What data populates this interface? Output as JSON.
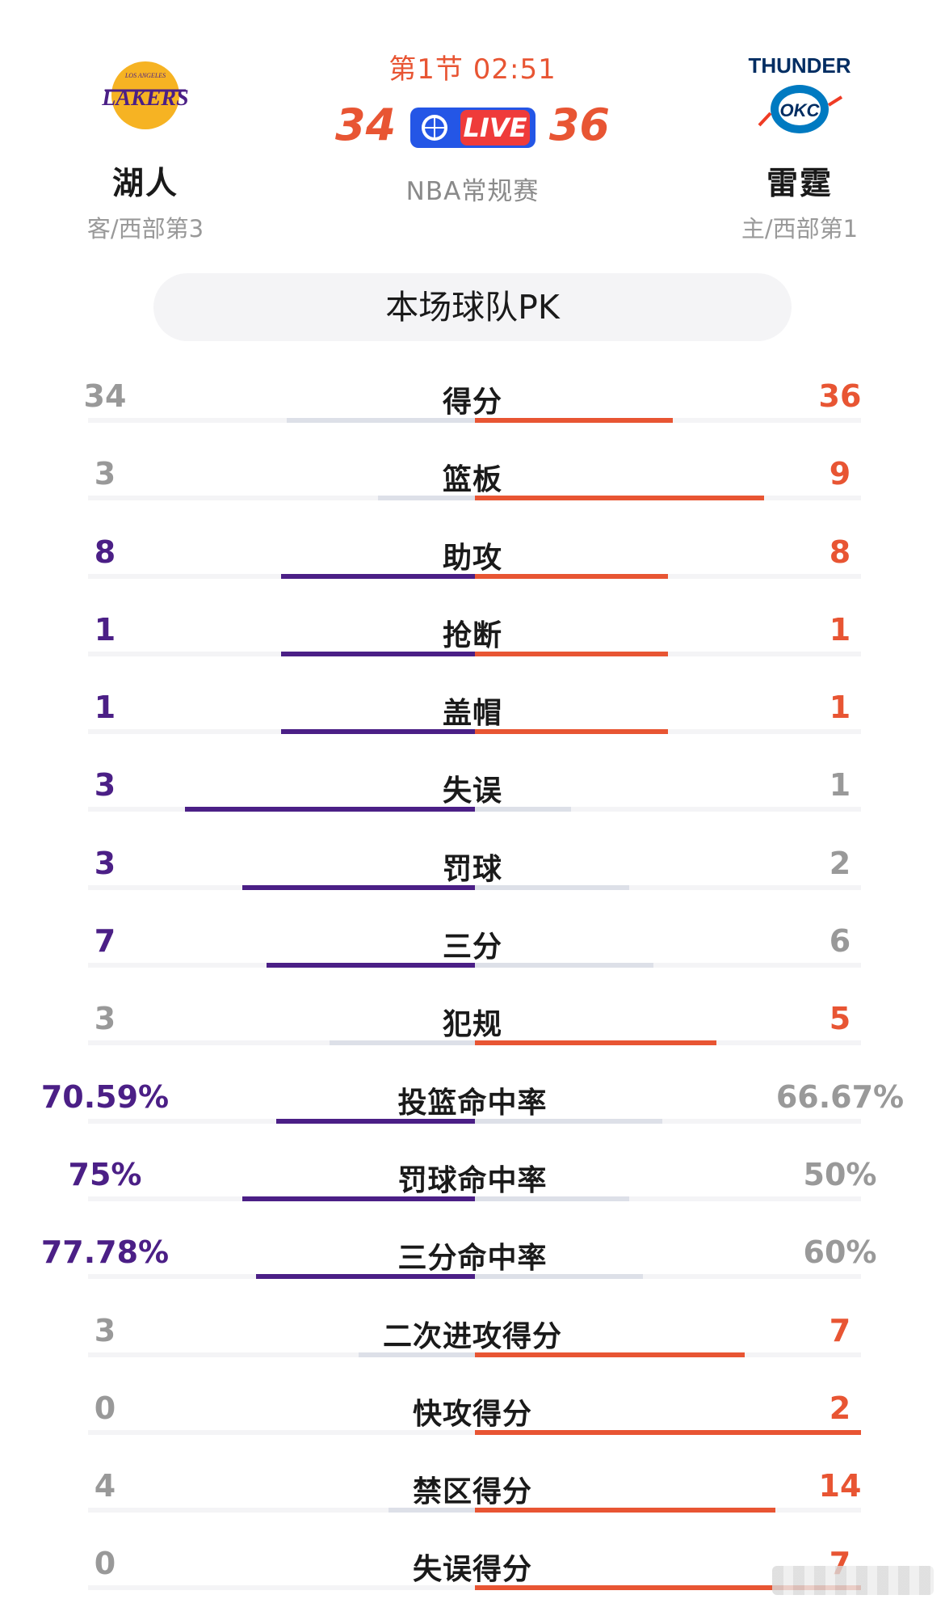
{
  "header": {
    "away": {
      "logo_icon": "lakers-logo-icon",
      "name": "湖人",
      "sub": "客/西部第3"
    },
    "home": {
      "logo_icon": "thunder-logo-icon",
      "name": "雷霆",
      "sub": "主/西部第1"
    },
    "period": "第1节 02:51",
    "away_score": "34",
    "home_score": "36",
    "live_icon": "basketball-icon",
    "live_label": "LIVE",
    "league": "NBA常规赛"
  },
  "section_title": "本场球队PK",
  "colors": {
    "away_accent": "#4b1f86",
    "home_accent": "#e85533",
    "muted_bar": "#dde0e8",
    "muted_text": "#999999"
  },
  "stats": [
    {
      "label": "得分",
      "away": "34",
      "home": "36",
      "leader": "home",
      "away_share": 0.486,
      "home_share": 0.514
    },
    {
      "label": "篮板",
      "away": "3",
      "home": "9",
      "leader": "home",
      "away_share": 0.25,
      "home_share": 0.75
    },
    {
      "label": "助攻",
      "away": "8",
      "home": "8",
      "leader": "both",
      "away_share": 0.5,
      "home_share": 0.5
    },
    {
      "label": "抢断",
      "away": "1",
      "home": "1",
      "leader": "both",
      "away_share": 0.5,
      "home_share": 0.5
    },
    {
      "label": "盖帽",
      "away": "1",
      "home": "1",
      "leader": "both",
      "away_share": 0.5,
      "home_share": 0.5
    },
    {
      "label": "失误",
      "away": "3",
      "home": "1",
      "leader": "away",
      "away_share": 0.75,
      "home_share": 0.25
    },
    {
      "label": "罚球",
      "away": "3",
      "home": "2",
      "leader": "away",
      "away_share": 0.6,
      "home_share": 0.4
    },
    {
      "label": "三分",
      "away": "7",
      "home": "6",
      "leader": "away",
      "away_share": 0.538,
      "home_share": 0.462
    },
    {
      "label": "犯规",
      "away": "3",
      "home": "5",
      "leader": "home",
      "away_share": 0.375,
      "home_share": 0.625
    },
    {
      "label": "投篮命中率",
      "away": "70.59%",
      "home": "66.67%",
      "leader": "away",
      "away_share": 0.514,
      "home_share": 0.486
    },
    {
      "label": "罚球命中率",
      "away": "75%",
      "home": "50%",
      "leader": "away",
      "away_share": 0.6,
      "home_share": 0.4
    },
    {
      "label": "三分命中率",
      "away": "77.78%",
      "home": "60%",
      "leader": "away",
      "away_share": 0.565,
      "home_share": 0.435
    },
    {
      "label": "二次进攻得分",
      "away": "3",
      "home": "7",
      "leader": "home",
      "away_share": 0.3,
      "home_share": 0.7
    },
    {
      "label": "快攻得分",
      "away": "0",
      "home": "2",
      "leader": "home",
      "away_share": 0.0,
      "home_share": 1.0
    },
    {
      "label": "禁区得分",
      "away": "4",
      "home": "14",
      "leader": "home",
      "away_share": 0.222,
      "home_share": 0.778
    },
    {
      "label": "失误得分",
      "away": "0",
      "home": "7",
      "leader": "home",
      "away_share": 0.0,
      "home_share": 1.0
    }
  ]
}
